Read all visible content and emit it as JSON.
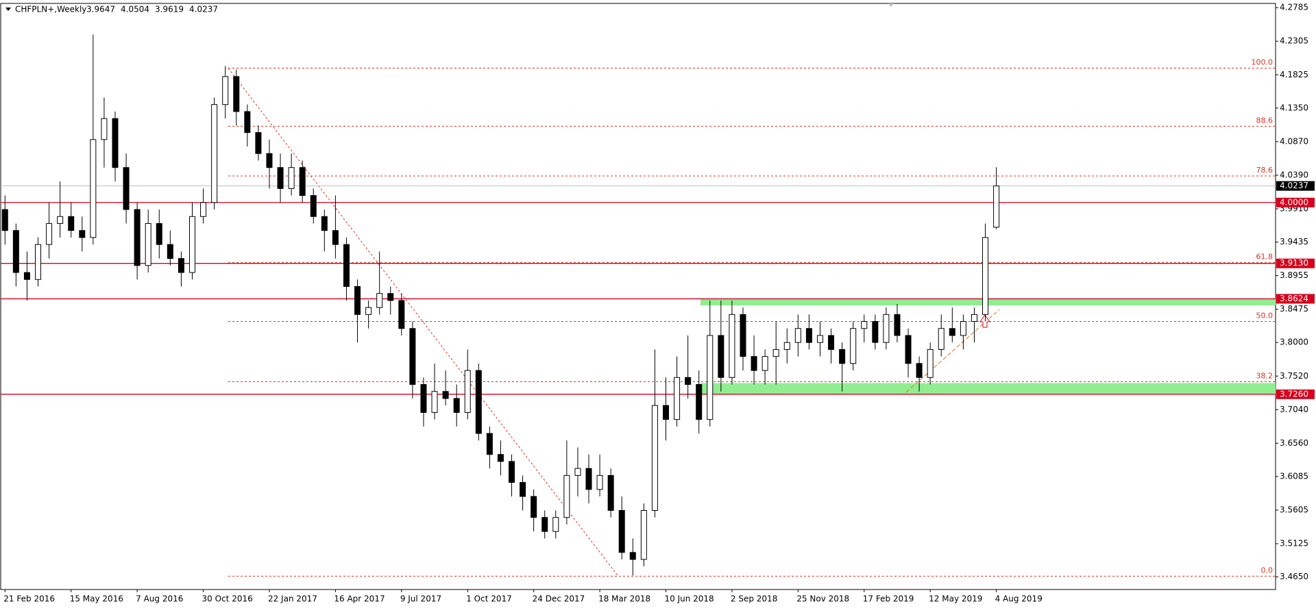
{
  "chart_data": {
    "type": "candlestick",
    "title": "CHFPLN+,Weekly",
    "categories": [
      "21 Feb 2016",
      null,
      null,
      null,
      null,
      null,
      "15 May 2016",
      null,
      null,
      null,
      null,
      null,
      "7 Aug 2016",
      null,
      null,
      null,
      null,
      null,
      "30 Oct 2016",
      null,
      null,
      null,
      null,
      null,
      "22 Jan 2017",
      null,
      null,
      null,
      null,
      null,
      "16 Apr 2017",
      null,
      null,
      null,
      null,
      null,
      "9 Jul 2017",
      null,
      null,
      null,
      null,
      null,
      "1 Oct 2017",
      null,
      null,
      null,
      null,
      null,
      "24 Dec 2017",
      null,
      null,
      null,
      null,
      null,
      "18 Mar 2018",
      null,
      null,
      null,
      null,
      null,
      "10 Jun 2018",
      null,
      null,
      null,
      null,
      null,
      "2 Sep 2018",
      null,
      null,
      null,
      null,
      null,
      "25 Nov 2018",
      null,
      null,
      null,
      null,
      null,
      "17 Feb 2019",
      null,
      null,
      null,
      null,
      null,
      "12 May 2019",
      null,
      null,
      null,
      null,
      null,
      "4 Aug 2019"
    ],
    "ohlc": [
      [
        3.99,
        4.01,
        3.94,
        3.96
      ],
      [
        3.96,
        3.97,
        3.88,
        3.9
      ],
      [
        3.9,
        3.93,
        3.86,
        3.89
      ],
      [
        3.89,
        3.95,
        3.88,
        3.94
      ],
      [
        3.94,
        4.0,
        3.92,
        3.97
      ],
      [
        3.97,
        4.03,
        3.95,
        3.98
      ],
      [
        3.98,
        4.0,
        3.95,
        3.96
      ],
      [
        3.96,
        3.98,
        3.93,
        3.95
      ],
      [
        3.95,
        4.24,
        3.94,
        4.09
      ],
      [
        4.09,
        4.15,
        4.05,
        4.12
      ],
      [
        4.12,
        4.13,
        4.03,
        4.05
      ],
      [
        4.05,
        4.07,
        3.97,
        3.99
      ],
      [
        3.99,
        4.0,
        3.89,
        3.91
      ],
      [
        3.91,
        3.99,
        3.9,
        3.97
      ],
      [
        3.97,
        3.99,
        3.92,
        3.94
      ],
      [
        3.94,
        3.96,
        3.91,
        3.92
      ],
      [
        3.92,
        3.93,
        3.88,
        3.9
      ],
      [
        3.9,
        4.0,
        3.89,
        3.98
      ],
      [
        3.98,
        4.02,
        3.97,
        4.0
      ],
      [
        4.0,
        4.15,
        3.99,
        4.14
      ],
      [
        4.14,
        4.195,
        4.12,
        4.18
      ],
      [
        4.18,
        4.19,
        4.11,
        4.13
      ],
      [
        4.13,
        4.14,
        4.08,
        4.1
      ],
      [
        4.1,
        4.11,
        4.06,
        4.07
      ],
      [
        4.07,
        4.09,
        4.02,
        4.05
      ],
      [
        4.05,
        4.07,
        4.0,
        4.02
      ],
      [
        4.02,
        4.07,
        4.01,
        4.05
      ],
      [
        4.05,
        4.06,
        4.0,
        4.01
      ],
      [
        4.01,
        4.02,
        3.97,
        3.98
      ],
      [
        3.98,
        3.99,
        3.93,
        3.96
      ],
      [
        3.96,
        4.01,
        3.92,
        3.94
      ],
      [
        3.94,
        3.95,
        3.86,
        3.88
      ],
      [
        3.88,
        3.89,
        3.8,
        3.84
      ],
      [
        3.84,
        3.86,
        3.82,
        3.85
      ],
      [
        3.85,
        3.93,
        3.84,
        3.87
      ],
      [
        3.87,
        3.88,
        3.84,
        3.86
      ],
      [
        3.86,
        3.87,
        3.81,
        3.82
      ],
      [
        3.82,
        3.83,
        3.72,
        3.74
      ],
      [
        3.74,
        3.75,
        3.68,
        3.7
      ],
      [
        3.7,
        3.77,
        3.69,
        3.73
      ],
      [
        3.73,
        3.76,
        3.71,
        3.72
      ],
      [
        3.72,
        3.74,
        3.68,
        3.7
      ],
      [
        3.7,
        3.79,
        3.69,
        3.76
      ],
      [
        3.76,
        3.77,
        3.66,
        3.67
      ],
      [
        3.67,
        3.68,
        3.62,
        3.64
      ],
      [
        3.64,
        3.66,
        3.61,
        3.63
      ],
      [
        3.63,
        3.64,
        3.58,
        3.6
      ],
      [
        3.6,
        3.61,
        3.56,
        3.58
      ],
      [
        3.58,
        3.59,
        3.53,
        3.55
      ],
      [
        3.55,
        3.56,
        3.52,
        3.53
      ],
      [
        3.53,
        3.56,
        3.52,
        3.55
      ],
      [
        3.55,
        3.66,
        3.54,
        3.61
      ],
      [
        3.61,
        3.65,
        3.58,
        3.62
      ],
      [
        3.62,
        3.64,
        3.57,
        3.59
      ],
      [
        3.59,
        3.64,
        3.58,
        3.61
      ],
      [
        3.61,
        3.62,
        3.55,
        3.56
      ],
      [
        3.56,
        3.58,
        3.49,
        3.5
      ],
      [
        3.5,
        3.52,
        3.467,
        3.49
      ],
      [
        3.49,
        3.57,
        3.48,
        3.56
      ],
      [
        3.56,
        3.79,
        3.55,
        3.71
      ],
      [
        3.71,
        3.75,
        3.66,
        3.69
      ],
      [
        3.69,
        3.78,
        3.68,
        3.75
      ],
      [
        3.75,
        3.81,
        3.72,
        3.74
      ],
      [
        3.74,
        3.76,
        3.67,
        3.69
      ],
      [
        3.69,
        3.86,
        3.68,
        3.81
      ],
      [
        3.81,
        3.86,
        3.73,
        3.75
      ],
      [
        3.75,
        3.86,
        3.74,
        3.84
      ],
      [
        3.84,
        3.85,
        3.76,
        3.78
      ],
      [
        3.78,
        3.81,
        3.74,
        3.76
      ],
      [
        3.76,
        3.79,
        3.74,
        3.78
      ],
      [
        3.78,
        3.83,
        3.74,
        3.79
      ],
      [
        3.79,
        3.82,
        3.77,
        3.8
      ],
      [
        3.8,
        3.84,
        3.78,
        3.82
      ],
      [
        3.82,
        3.84,
        3.79,
        3.8
      ],
      [
        3.8,
        3.83,
        3.78,
        3.81
      ],
      [
        3.81,
        3.82,
        3.77,
        3.79
      ],
      [
        3.79,
        3.8,
        3.73,
        3.77
      ],
      [
        3.77,
        3.83,
        3.76,
        3.82
      ],
      [
        3.82,
        3.84,
        3.8,
        3.83
      ],
      [
        3.83,
        3.84,
        3.79,
        3.8
      ],
      [
        3.8,
        3.85,
        3.79,
        3.84
      ],
      [
        3.84,
        3.855,
        3.8,
        3.81
      ],
      [
        3.81,
        3.82,
        3.75,
        3.77
      ],
      [
        3.77,
        3.78,
        3.73,
        3.75
      ],
      [
        3.75,
        3.8,
        3.74,
        3.79
      ],
      [
        3.79,
        3.84,
        3.78,
        3.82
      ],
      [
        3.82,
        3.85,
        3.8,
        3.81
      ],
      [
        3.81,
        3.84,
        3.79,
        3.83
      ],
      [
        3.83,
        3.85,
        3.8,
        3.84
      ],
      [
        3.84,
        3.97,
        3.83,
        3.95
      ],
      [
        3.9647,
        4.0504,
        3.9619,
        4.0237
      ]
    ],
    "ylim": [
      3.447,
      4.2845
    ],
    "yticks": [
      4.2785,
      4.2305,
      4.1825,
      {
        "value": 4.135,
        "label": "4.1350"
      },
      {
        "value": 4.087,
        "label": "4.0870"
      },
      {
        "value": 4.039,
        "label": "4.0390"
      },
      {
        "value": 3.991,
        "label": "3.9910"
      },
      3.9435,
      3.8955,
      3.8475,
      {
        "value": 3.8,
        "label": "3.8000"
      },
      {
        "value": 3.752,
        "label": "3.7520"
      },
      {
        "value": 3.704,
        "label": "3.7040"
      },
      {
        "value": 3.656,
        "label": "3.6560"
      },
      3.6085,
      3.5605,
      3.5125,
      {
        "value": 3.465,
        "label": "3.4650"
      }
    ],
    "levels": [
      {
        "value": 4.0,
        "label": "4.0000"
      },
      {
        "value": 3.913,
        "label": "3.9130"
      },
      3.8624,
      {
        "value": 3.726,
        "label": "3.7260"
      }
    ],
    "fib_levels": [
      {
        "value": 100,
        "label": "100.0",
        "price": 4.192
      },
      {
        "value": 88.6,
        "label": "88.6",
        "price": 4.109
      },
      {
        "value": 78.6,
        "label": "78.6",
        "price": 4.038
      },
      {
        "value": 61.8,
        "label": "61.8",
        "price": 3.914
      },
      {
        "value": 50,
        "label": "50.0",
        "price": 3.83
      },
      {
        "value": 38.2,
        "label": "38.2",
        "price": 3.744
      },
      {
        "value": 0,
        "label": "0.0",
        "price": 3.466
      }
    ],
    "zones": [
      [
        3.8624,
        3.853
      ],
      [
        3.742,
        3.726
      ]
    ],
    "up_color": "#ffffff",
    "down_color": "#000000",
    "level_color": "#d6001c",
    "fib_color": "#e0301e",
    "zone_color": "#90ee90"
  }
}
